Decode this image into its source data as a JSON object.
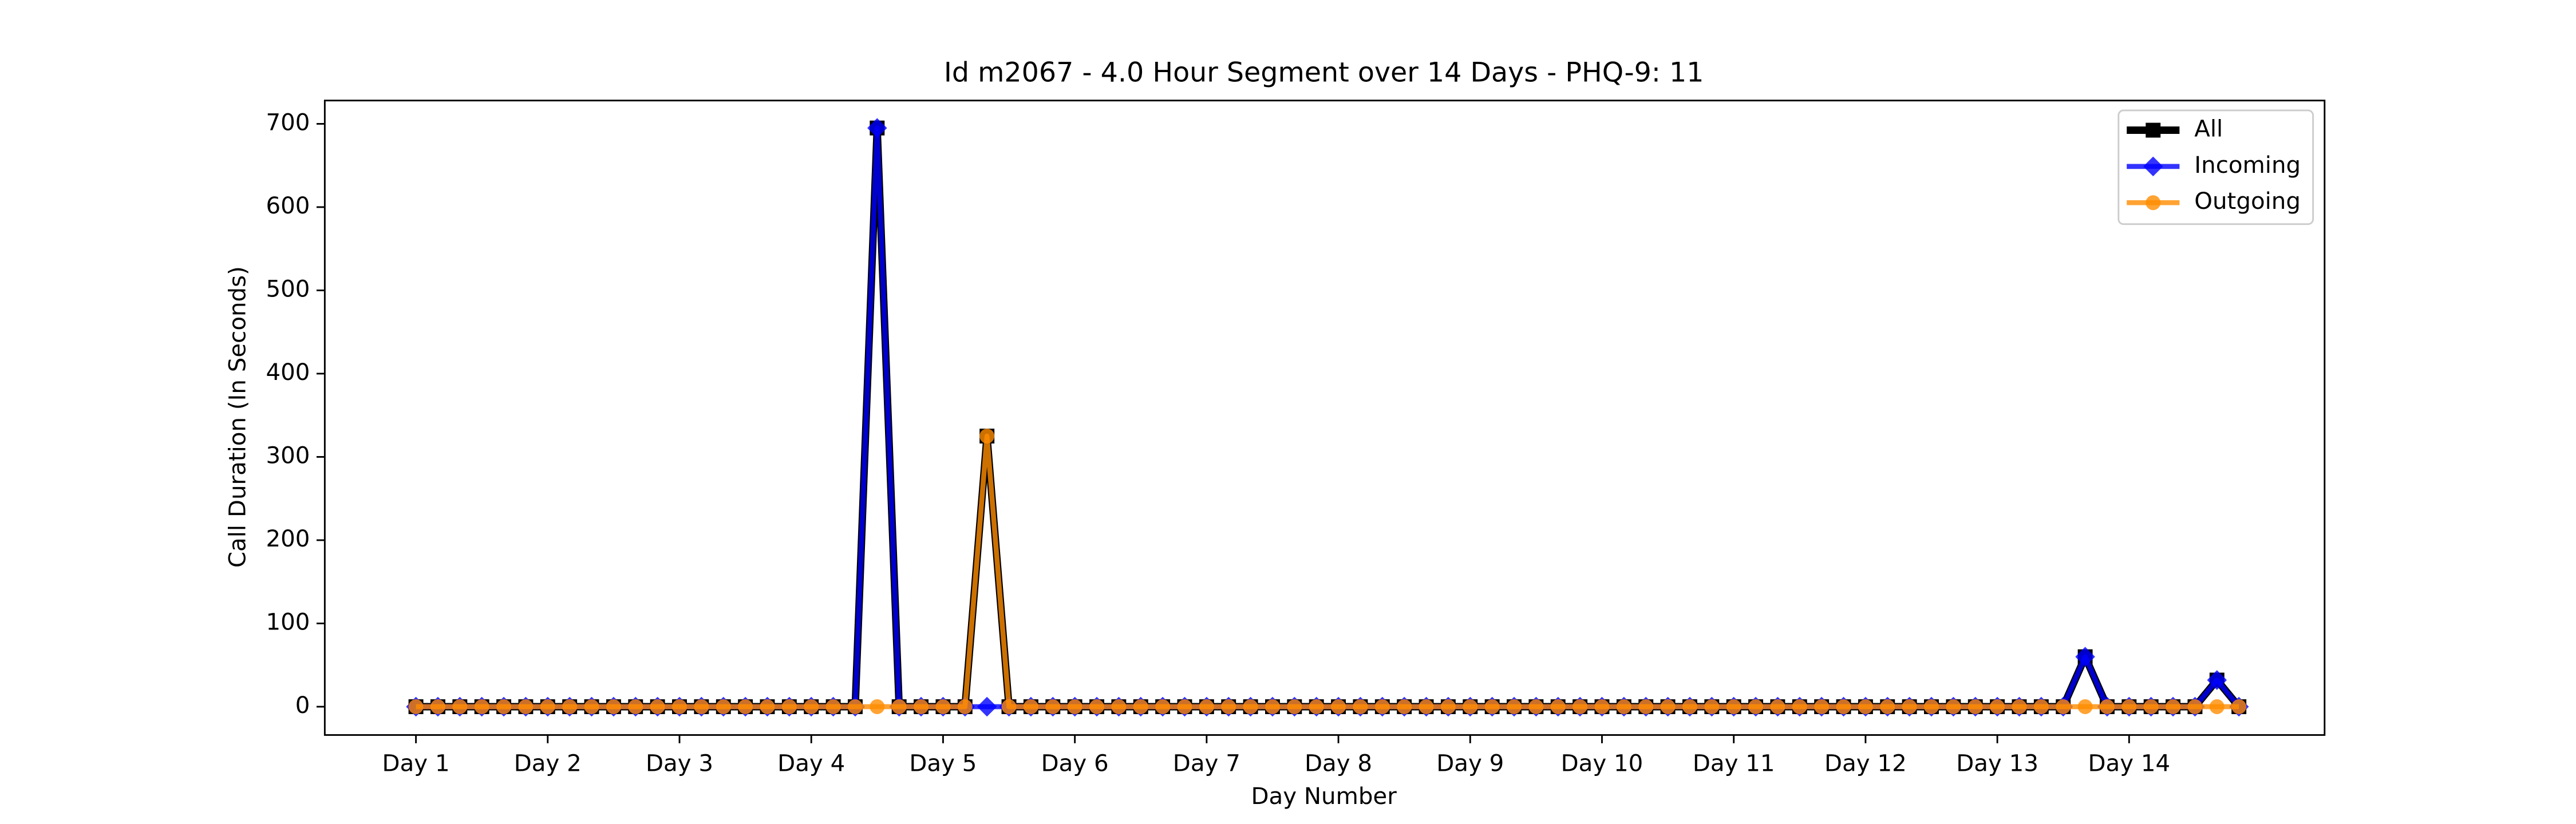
{
  "chart_data": {
    "type": "line",
    "title": "Id m2067 - 4.0 Hour Segment over 14 Days - PHQ-9: 11",
    "x_label": "Day Number",
    "y_label": "Call Duration (In Seconds)",
    "categories": [
      "Day 1",
      null,
      null,
      null,
      null,
      null,
      "Day 2",
      null,
      null,
      null,
      null,
      null,
      "Day 3",
      null,
      null,
      null,
      null,
      null,
      "Day 4",
      null,
      null,
      null,
      null,
      null,
      "Day 5",
      null,
      null,
      null,
      null,
      null,
      "Day 6",
      null,
      null,
      null,
      null,
      null,
      "Day 7",
      null,
      null,
      null,
      null,
      null,
      "Day 8",
      null,
      null,
      null,
      null,
      null,
      "Day 9",
      null,
      null,
      null,
      null,
      null,
      "Day 10",
      null,
      null,
      null,
      null,
      null,
      "Day 11",
      null,
      null,
      null,
      null,
      null,
      "Day 12",
      null,
      null,
      null,
      null,
      null,
      "Day 13",
      null,
      null,
      null,
      null,
      null,
      "Day 14",
      null,
      null,
      null,
      null,
      null
    ],
    "series": [
      {
        "name": "All",
        "color": "#000000",
        "marker": "square",
        "values": [
          0,
          0,
          0,
          0,
          0,
          0,
          0,
          0,
          0,
          0,
          0,
          0,
          0,
          0,
          0,
          0,
          0,
          0,
          0,
          0,
          0,
          695,
          0,
          0,
          0,
          0,
          325,
          0,
          0,
          0,
          0,
          0,
          0,
          0,
          0,
          0,
          0,
          0,
          0,
          0,
          0,
          0,
          0,
          0,
          0,
          0,
          0,
          0,
          0,
          0,
          0,
          0,
          0,
          0,
          0,
          0,
          0,
          0,
          0,
          0,
          0,
          0,
          0,
          0,
          0,
          0,
          0,
          0,
          0,
          0,
          0,
          0,
          0,
          0,
          0,
          0,
          60,
          0,
          0,
          0,
          0,
          0,
          32,
          0
        ]
      },
      {
        "name": "Incoming",
        "color": "#0000ff",
        "marker": "diamond",
        "values": [
          0,
          0,
          0,
          0,
          0,
          0,
          0,
          0,
          0,
          0,
          0,
          0,
          0,
          0,
          0,
          0,
          0,
          0,
          0,
          0,
          0,
          695,
          0,
          0,
          0,
          0,
          0,
          0,
          0,
          0,
          0,
          0,
          0,
          0,
          0,
          0,
          0,
          0,
          0,
          0,
          0,
          0,
          0,
          0,
          0,
          0,
          0,
          0,
          0,
          0,
          0,
          0,
          0,
          0,
          0,
          0,
          0,
          0,
          0,
          0,
          0,
          0,
          0,
          0,
          0,
          0,
          0,
          0,
          0,
          0,
          0,
          0,
          0,
          0,
          0,
          0,
          60,
          0,
          0,
          0,
          0,
          0,
          32,
          0
        ]
      },
      {
        "name": "Outgoing",
        "color": "#ff8c00",
        "marker": "circle",
        "values": [
          0,
          0,
          0,
          0,
          0,
          0,
          0,
          0,
          0,
          0,
          0,
          0,
          0,
          0,
          0,
          0,
          0,
          0,
          0,
          0,
          0,
          0,
          0,
          0,
          0,
          0,
          325,
          0,
          0,
          0,
          0,
          0,
          0,
          0,
          0,
          0,
          0,
          0,
          0,
          0,
          0,
          0,
          0,
          0,
          0,
          0,
          0,
          0,
          0,
          0,
          0,
          0,
          0,
          0,
          0,
          0,
          0,
          0,
          0,
          0,
          0,
          0,
          0,
          0,
          0,
          0,
          0,
          0,
          0,
          0,
          0,
          0,
          0,
          0,
          0,
          0,
          0,
          0,
          0,
          0,
          0,
          0,
          0,
          0
        ]
      }
    ],
    "xlim": [
      -4.15,
      86.9
    ],
    "ylim": [
      -34,
      728
    ],
    "yticks": [
      0,
      100,
      200,
      300,
      400,
      500,
      600,
      700
    ],
    "grid": false,
    "legend": "upper right"
  }
}
